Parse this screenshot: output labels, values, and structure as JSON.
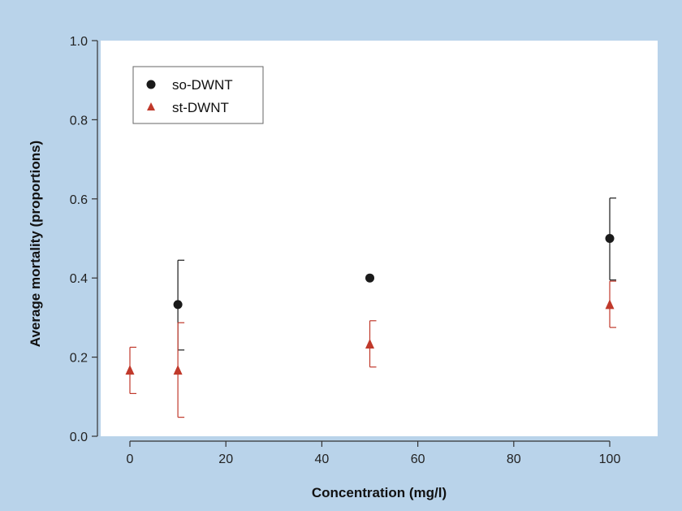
{
  "chart_data": {
    "type": "scatter",
    "xlabel": "Concentration (mg/l)",
    "ylabel": "Average mortality (proportions)",
    "xlim": [
      -5,
      110
    ],
    "ylim": [
      0,
      1.0
    ],
    "xticks": [
      0,
      20,
      40,
      60,
      80,
      100
    ],
    "xtick_labels": [
      "0",
      "20",
      "40",
      "60",
      "80",
      "100"
    ],
    "yticks": [
      0.0,
      0.2,
      0.4,
      0.6,
      0.8,
      1.0
    ],
    "ytick_labels": [
      "0.0",
      "0.2",
      "0.4",
      "0.6",
      "0.8",
      "1.0"
    ],
    "grid": false,
    "legend_position": "top-left",
    "series": [
      {
        "name": "so-DWNT",
        "marker": "circle",
        "color": "#1a1a1a",
        "points": [
          {
            "x": 10,
            "y": 0.333,
            "err_low": 0.218,
            "err_high": 0.445
          },
          {
            "x": 50,
            "y": 0.4,
            "err_low": null,
            "err_high": null
          },
          {
            "x": 100,
            "y": 0.5,
            "err_low": 0.395,
            "err_high": 0.602
          }
        ]
      },
      {
        "name": "st-DWNT",
        "marker": "triangle",
        "color": "#c0392b",
        "points": [
          {
            "x": 0,
            "y": 0.167,
            "err_low": 0.108,
            "err_high": 0.225
          },
          {
            "x": 10,
            "y": 0.167,
            "err_low": 0.048,
            "err_high": 0.287
          },
          {
            "x": 50,
            "y": 0.233,
            "err_low": 0.175,
            "err_high": 0.292
          },
          {
            "x": 100,
            "y": 0.333,
            "err_low": 0.275,
            "err_high": 0.392
          }
        ]
      }
    ]
  }
}
